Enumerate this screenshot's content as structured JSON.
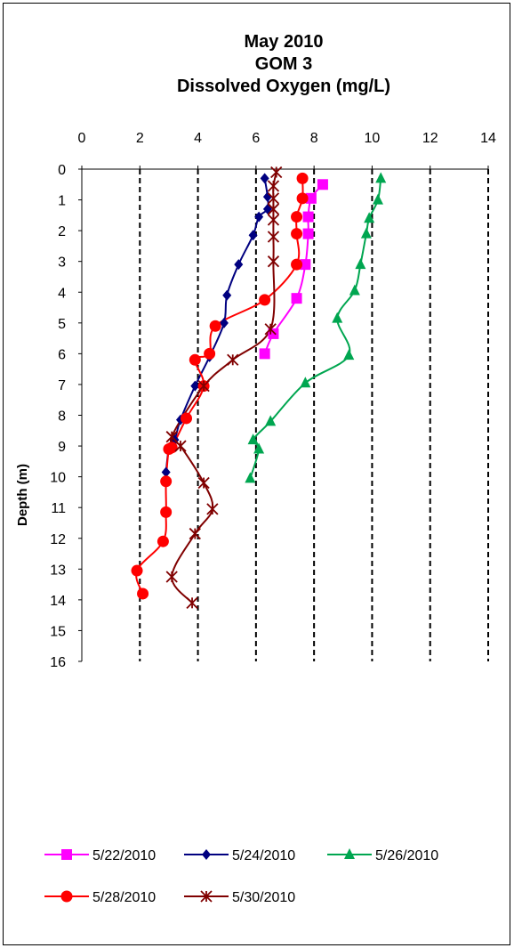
{
  "chart_data": {
    "type": "line",
    "title": [
      "May 2010",
      "GOM 3",
      "Dissolved Oxygen (mg/L)"
    ],
    "xlabel": "",
    "ylabel": "Depth (m)",
    "xlim": [
      0,
      14
    ],
    "ylim": [
      0,
      16
    ],
    "y_reversed": true,
    "x_ticks": [
      0,
      2,
      4,
      6,
      8,
      10,
      12,
      14
    ],
    "y_ticks": [
      0,
      1,
      2,
      3,
      4,
      5,
      6,
      7,
      8,
      9,
      10,
      11,
      12,
      13,
      14,
      15,
      16
    ],
    "grid": "vertical dashed",
    "legend_position": "bottom",
    "series": [
      {
        "name": "5/22/2010",
        "color": "#ff00ff",
        "marker": "square",
        "points": [
          [
            8.3,
            0.5
          ],
          [
            7.9,
            0.95
          ],
          [
            7.8,
            1.55
          ],
          [
            7.8,
            2.1
          ],
          [
            7.7,
            3.1
          ],
          [
            7.4,
            4.2
          ],
          [
            6.6,
            5.35
          ],
          [
            6.3,
            6.0
          ]
        ]
      },
      {
        "name": "5/24/2010",
        "color": "#000080",
        "marker": "diamond",
        "points": [
          [
            6.3,
            0.3
          ],
          [
            6.4,
            0.9
          ],
          [
            6.4,
            1.3
          ],
          [
            6.1,
            1.55
          ],
          [
            5.9,
            2.15
          ],
          [
            5.4,
            3.1
          ],
          [
            5.0,
            4.1
          ],
          [
            4.9,
            5.0
          ],
          [
            4.4,
            6.1
          ],
          [
            3.9,
            7.05
          ],
          [
            3.4,
            8.15
          ],
          [
            3.2,
            8.8
          ],
          [
            3.0,
            9.1
          ],
          [
            2.9,
            9.85
          ]
        ]
      },
      {
        "name": "5/26/2010",
        "color": "#00a650",
        "marker": "triangle",
        "points": [
          [
            10.3,
            0.3
          ],
          [
            10.2,
            1.0
          ],
          [
            9.9,
            1.6
          ],
          [
            9.8,
            2.1
          ],
          [
            9.6,
            3.1
          ],
          [
            9.4,
            3.95
          ],
          [
            8.8,
            4.85
          ],
          [
            9.2,
            6.05
          ],
          [
            7.7,
            6.95
          ],
          [
            6.5,
            8.2
          ],
          [
            5.9,
            8.8
          ],
          [
            6.1,
            9.1
          ],
          [
            5.8,
            10.05
          ]
        ]
      },
      {
        "name": "5/28/2010",
        "color": "#ff0000",
        "marker": "circle",
        "points": [
          [
            7.6,
            0.3
          ],
          [
            7.6,
            0.95
          ],
          [
            7.4,
            1.55
          ],
          [
            7.4,
            2.1
          ],
          [
            7.4,
            3.1
          ],
          [
            6.3,
            4.25
          ],
          [
            4.6,
            5.1
          ],
          [
            4.4,
            6.0
          ],
          [
            3.9,
            6.2
          ],
          [
            4.2,
            7.05
          ],
          [
            3.6,
            8.1
          ],
          [
            3.1,
            9.05
          ],
          [
            3.0,
            9.1
          ],
          [
            2.9,
            10.15
          ],
          [
            2.9,
            11.15
          ],
          [
            2.8,
            12.1
          ],
          [
            1.9,
            13.05
          ],
          [
            2.1,
            13.8
          ]
        ]
      },
      {
        "name": "5/30/2010",
        "color": "#800000",
        "marker": "star",
        "points": [
          [
            6.7,
            0.1
          ],
          [
            6.6,
            0.55
          ],
          [
            6.6,
            0.95
          ],
          [
            6.6,
            1.3
          ],
          [
            6.6,
            1.65
          ],
          [
            6.6,
            2.2
          ],
          [
            6.6,
            3.0
          ],
          [
            6.5,
            5.2
          ],
          [
            5.2,
            6.2
          ],
          [
            4.2,
            7.05
          ],
          [
            3.1,
            8.7
          ],
          [
            3.4,
            9.0
          ],
          [
            4.2,
            10.2
          ],
          [
            4.5,
            11.05
          ],
          [
            3.9,
            11.85
          ],
          [
            3.1,
            13.25
          ],
          [
            3.8,
            14.1
          ]
        ]
      }
    ]
  }
}
